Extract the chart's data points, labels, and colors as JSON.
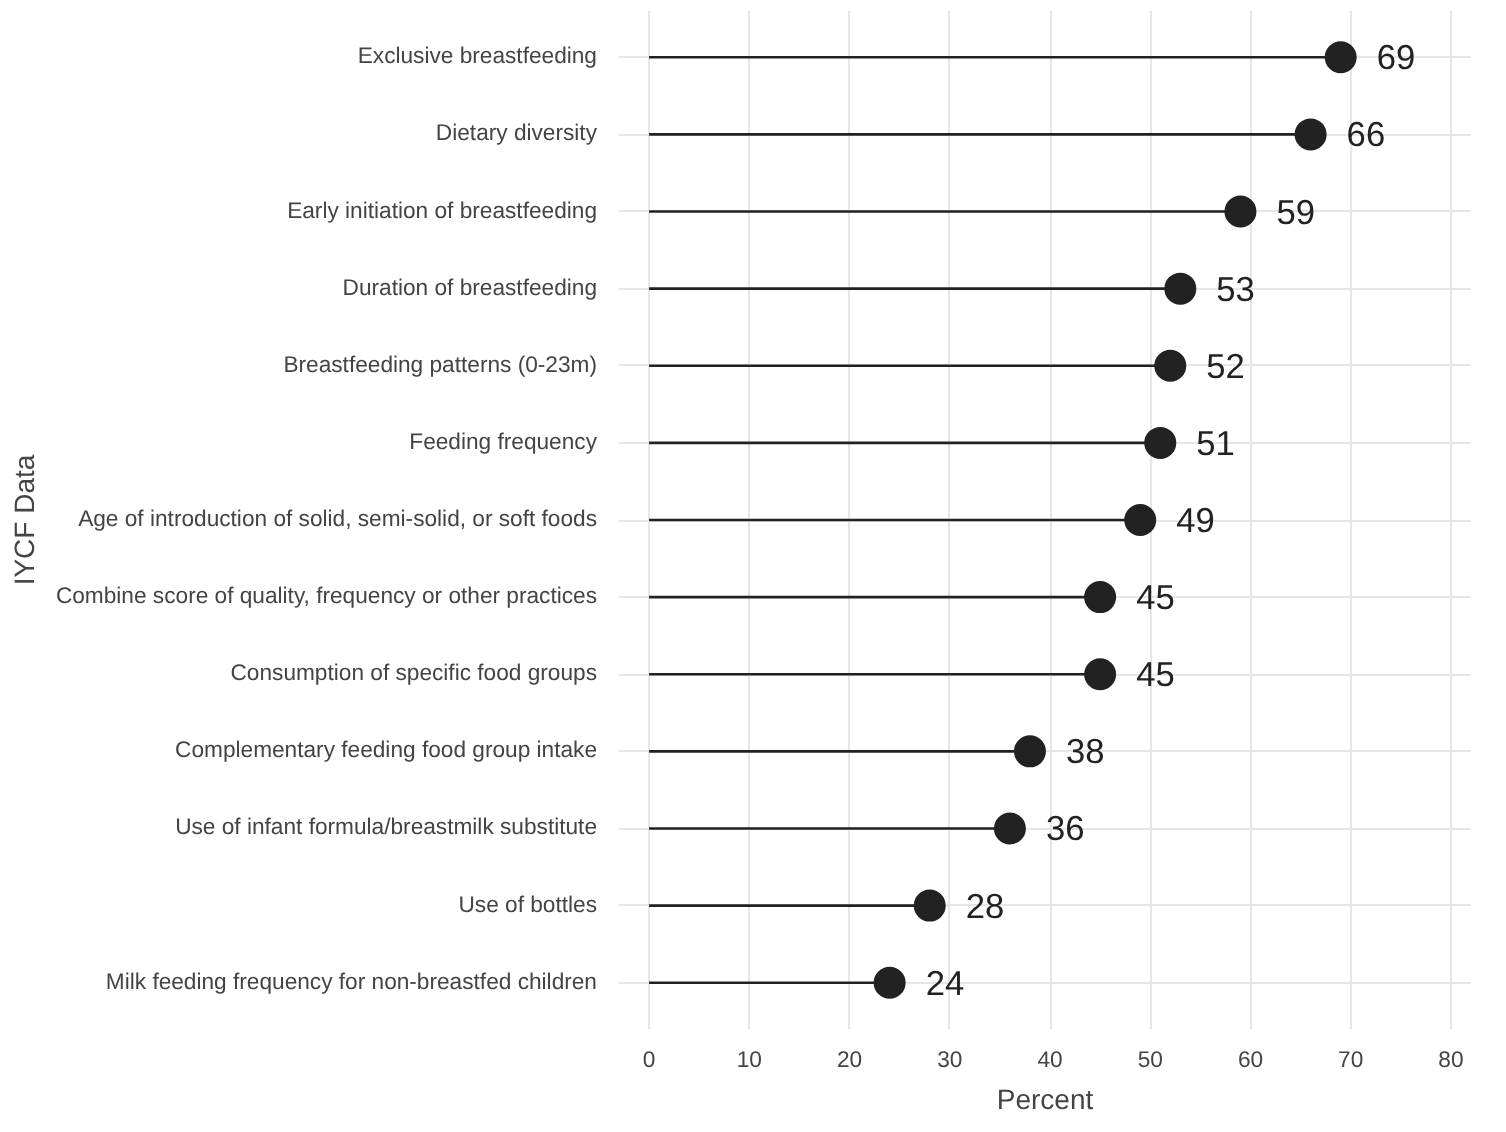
{
  "chart_data": {
    "type": "lollipop",
    "orientation": "horizontal",
    "xlabel": "Percent",
    "ylabel": "IYCF Data",
    "categories": [
      "Exclusive breastfeeding",
      "Dietary diversity",
      "Early initiation of breastfeeding",
      "Duration of breastfeeding",
      "Breastfeeding patterns (0-23m)",
      "Feeding frequency",
      "Age of introduction of solid, semi-solid, or soft foods",
      "Combine score of quality, frequency or other practices",
      "Consumption of specific food groups",
      "Complementary feeding food group intake",
      "Use of infant formula/breastmilk substitute",
      "Use of bottles",
      "Milk feeding frequency for non-breastfed children"
    ],
    "values": [
      69,
      66,
      59,
      53,
      52,
      51,
      49,
      45,
      45,
      38,
      36,
      28,
      24
    ],
    "color": "#222222",
    "xlim": [
      -3,
      82
    ],
    "xticks": [
      0,
      10,
      20,
      30,
      40,
      50,
      60,
      70,
      80
    ],
    "grid": true,
    "data_labels": true,
    "marker": "circle"
  }
}
